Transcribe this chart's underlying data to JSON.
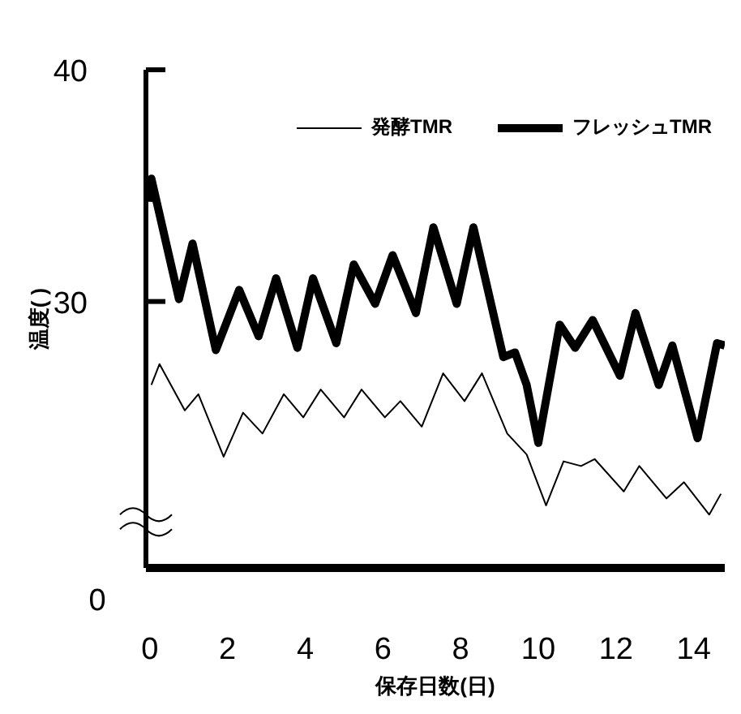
{
  "chart_data": {
    "type": "line",
    "xlabel": "保存日数(日)",
    "ylabel": "温度( )",
    "xlim": [
      -0.1,
      14.8
    ],
    "xticks": [
      0,
      2,
      4,
      6,
      8,
      10,
      12,
      14
    ],
    "ylim": [
      18.5,
      40
    ],
    "yticks": [
      30,
      40
    ],
    "legend": "top right",
    "grid": false,
    "marker": "none",
    "annotations": [
      "0"
    ],
    "series": [
      {
        "name": "発酵TMR",
        "color": "#000000",
        "x": [
          0.04,
          0.25,
          0.9,
          1.25,
          1.9,
          2.4,
          2.9,
          3.45,
          3.95,
          4.4,
          5.0,
          5.45,
          6.05,
          6.45,
          7.0,
          7.55,
          8.1,
          8.55,
          9.2,
          9.7,
          10.2,
          10.65,
          11.1,
          11.45,
          12.2,
          12.6,
          13.3,
          13.75,
          14.4,
          14.7
        ],
        "values": [
          26.4,
          27.3,
          25.3,
          26.0,
          23.3,
          25.2,
          24.3,
          26.0,
          25.0,
          26.2,
          25.0,
          26.2,
          25.0,
          25.7,
          24.6,
          26.9,
          25.7,
          26.9,
          24.3,
          23.4,
          21.2,
          23.1,
          22.9,
          23.2,
          21.8,
          22.9,
          21.5,
          22.2,
          20.8,
          21.7
        ]
      },
      {
        "name": "フレッシュTMR",
        "color": "#000000",
        "x": [
          0,
          0.04,
          0.75,
          1.1,
          1.7,
          2.3,
          2.8,
          3.25,
          3.8,
          4.2,
          4.8,
          5.25,
          5.8,
          6.25,
          6.85,
          7.3,
          7.9,
          8.33,
          9.1,
          9.4,
          9.7,
          10.0,
          10.55,
          10.95,
          11.4,
          12.1,
          12.5,
          13.1,
          13.45,
          14.1,
          14.6,
          14.8
        ],
        "values": [
          34.3,
          35.3,
          30.1,
          32.5,
          27.9,
          30.5,
          28.5,
          31.0,
          28.0,
          31.0,
          28.2,
          31.6,
          29.9,
          32.0,
          29.5,
          33.2,
          29.9,
          33.2,
          27.6,
          27.8,
          26.4,
          23.9,
          29.0,
          28.0,
          29.2,
          26.8,
          29.5,
          26.4,
          28.1,
          24.1,
          28.2,
          28.1
        ]
      }
    ]
  }
}
